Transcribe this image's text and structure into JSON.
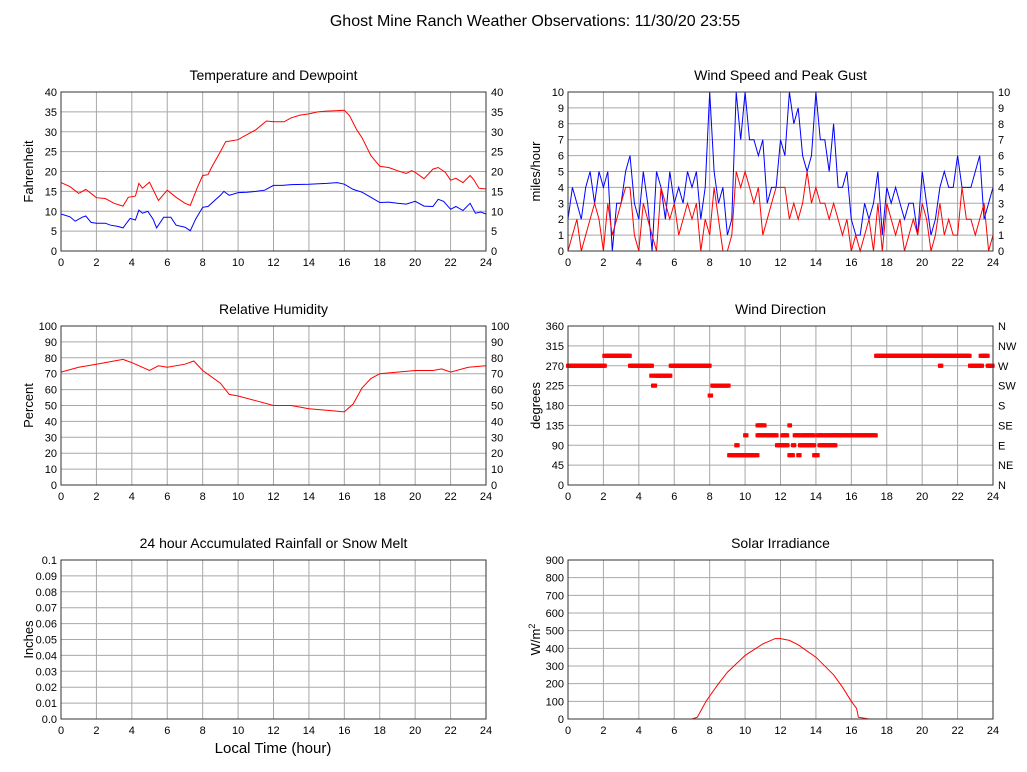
{
  "title": "Ghost Mine Ranch Weather Observations: 11/30/20 23:55",
  "xlabel_common": "Local Time (hour)",
  "colors": {
    "red": "#ff0000",
    "blue": "#0000ff"
  },
  "chart_data": [
    {
      "id": "temp",
      "type": "line",
      "title": "Temperature and Dewpoint",
      "ylabel": "Fahrenheit",
      "xlim": [
        0,
        24
      ],
      "ylim": [
        0,
        40
      ],
      "xticks": [
        0,
        2,
        4,
        6,
        8,
        10,
        12,
        14,
        16,
        18,
        20,
        22,
        24
      ],
      "yticks": [
        0,
        5,
        10,
        15,
        20,
        25,
        30,
        35,
        40
      ],
      "right_ticks": [
        "0",
        "5",
        "10",
        "15",
        "20",
        "25",
        "30",
        "35",
        "40"
      ],
      "series": [
        {
          "name": "Temperature",
          "color": "#ff0000",
          "x": [
            0,
            0.5,
            1,
            1.4,
            2,
            2.5,
            3,
            3.5,
            3.8,
            4.2,
            4.4,
            4.6,
            5,
            5.5,
            6,
            6.5,
            7,
            7.3,
            7.7,
            8,
            8.3,
            8.5,
            9,
            9.3,
            10,
            10.3,
            10.6,
            11,
            11.6,
            12,
            12.6,
            13,
            13.5,
            14,
            14.5,
            15,
            15.5,
            16,
            16.3,
            16.7,
            17,
            17.5,
            18,
            18.5,
            19,
            19.5,
            19.8,
            20,
            20.5,
            21,
            21.3,
            21.7,
            22,
            22.3,
            22.7,
            23.1,
            23.3,
            23.6,
            24
          ],
          "y": [
            17.2,
            16.2,
            14.5,
            15.5,
            13.4,
            13.2,
            12,
            11.3,
            13.5,
            13.8,
            17,
            15.8,
            17.3,
            12.7,
            15.3,
            13.5,
            12,
            11.5,
            16,
            19,
            19.2,
            21,
            25,
            27.5,
            28,
            28.8,
            29.5,
            30.5,
            32.7,
            32.5,
            32.5,
            33.5,
            34.2,
            34.5,
            35,
            35.2,
            35.3,
            35.4,
            34,
            30.5,
            28.5,
            24,
            21.3,
            21,
            20.2,
            19.5,
            20.2,
            19.8,
            18.2,
            20.6,
            21,
            19.8,
            17.8,
            18.3,
            17.2,
            19,
            18,
            15.8,
            15.6
          ]
        },
        {
          "name": "Dewpoint",
          "color": "#0000ff",
          "x": [
            0,
            0.5,
            0.8,
            1.2,
            1.4,
            1.7,
            2,
            2.5,
            2.8,
            3.2,
            3.5,
            3.9,
            4.2,
            4.4,
            4.6,
            4.9,
            5.2,
            5.4,
            5.8,
            6.2,
            6.5,
            7,
            7.3,
            7.6,
            8,
            8.3,
            9,
            9.2,
            9.5,
            10,
            10.5,
            11,
            11.5,
            12,
            12.5,
            13,
            14,
            15,
            15.6,
            16,
            16.5,
            17,
            17.5,
            18,
            18.5,
            19,
            19.5,
            20,
            20.5,
            21,
            21.3,
            21.6,
            22,
            22.3,
            22.7,
            23.1,
            23.4,
            23.7,
            24
          ],
          "y": [
            9.3,
            8.6,
            7.5,
            8.5,
            8.8,
            7.2,
            7,
            7,
            6.5,
            6.2,
            5.8,
            8.2,
            7.8,
            10.3,
            9.5,
            10,
            8,
            5.8,
            8.5,
            8.5,
            6.5,
            6,
            5.1,
            8,
            11,
            11.2,
            14,
            15,
            14,
            14.7,
            14.8,
            15,
            15.3,
            16.5,
            16.5,
            16.7,
            16.8,
            17,
            17.2,
            16.8,
            15.5,
            14.8,
            13.5,
            12.2,
            12.3,
            12,
            11.8,
            12.5,
            11.3,
            11.2,
            13,
            12.5,
            10.5,
            11.2,
            10.2,
            12,
            9.5,
            9.8,
            9.3
          ]
        }
      ]
    },
    {
      "id": "wind",
      "type": "line",
      "title": "Wind Speed and Peak Gust",
      "ylabel": "miles/hour",
      "xlim": [
        0,
        24
      ],
      "ylim": [
        0,
        10
      ],
      "xticks": [
        0,
        2,
        4,
        6,
        8,
        10,
        12,
        14,
        16,
        18,
        20,
        22,
        24
      ],
      "yticks": [
        0,
        1,
        2,
        3,
        4,
        5,
        6,
        7,
        8,
        9,
        10
      ],
      "right_ticks": [
        "0",
        "1",
        "2",
        "3",
        "4",
        "5",
        "6",
        "7",
        "8",
        "9",
        "10"
      ],
      "x_step": 0.25,
      "series": [
        {
          "name": "Peak Gust",
          "color": "#0000ff",
          "y": [
            2,
            4,
            3,
            2,
            4,
            5,
            3,
            5,
            4,
            5,
            0,
            3,
            3,
            5,
            6,
            3,
            2,
            5,
            3,
            0,
            5,
            4,
            2,
            5,
            3,
            4,
            3,
            5,
            4,
            5,
            2,
            4,
            10,
            5,
            3,
            4,
            1,
            2,
            10,
            7,
            10,
            7,
            7,
            6,
            7,
            3,
            4,
            4,
            7,
            6,
            10,
            8,
            9,
            6,
            5,
            6,
            10,
            7,
            7,
            5,
            8,
            4,
            4,
            5,
            2,
            1,
            1,
            3,
            2,
            3,
            5,
            1,
            4,
            3,
            4,
            3,
            2,
            3,
            3,
            1,
            5,
            3,
            1,
            2,
            4,
            5,
            4,
            4,
            6,
            4,
            4,
            4,
            5,
            6,
            2,
            3,
            4
          ]
        },
        {
          "name": "Wind Speed",
          "color": "#ff0000",
          "y": [
            0,
            1,
            2,
            0,
            1,
            2,
            3,
            2,
            0,
            3,
            1,
            2,
            3,
            4,
            4,
            1,
            0,
            3,
            2,
            1,
            0,
            4,
            3,
            2,
            3,
            1,
            2,
            3,
            2,
            3,
            0,
            2,
            1,
            4,
            2,
            0,
            0,
            1,
            5,
            4,
            5,
            4,
            3,
            4,
            1,
            2,
            3,
            4,
            4,
            4,
            2,
            3,
            2,
            3,
            5,
            3,
            4,
            3,
            3,
            2,
            3,
            2,
            1,
            2,
            0,
            1,
            0,
            1,
            2,
            0,
            3,
            0,
            3,
            2,
            1,
            2,
            0,
            1,
            2,
            1,
            3,
            2,
            0,
            1,
            3,
            1,
            2,
            1,
            1,
            4,
            2,
            2,
            1,
            2,
            3,
            0,
            1
          ]
        }
      ]
    },
    {
      "id": "rh",
      "type": "line",
      "title": "Relative Humidity",
      "ylabel": "Percent",
      "xlim": [
        0,
        24
      ],
      "ylim": [
        0,
        100
      ],
      "xticks": [
        0,
        2,
        4,
        6,
        8,
        10,
        12,
        14,
        16,
        18,
        20,
        22,
        24
      ],
      "yticks": [
        0,
        10,
        20,
        30,
        40,
        50,
        60,
        70,
        80,
        90,
        100
      ],
      "right_ticks": [
        "0",
        "10",
        "20",
        "30",
        "40",
        "50",
        "60",
        "70",
        "80",
        "90",
        "100"
      ],
      "series": [
        {
          "name": "Relative Humidity",
          "color": "#ff0000",
          "x": [
            0,
            1,
            2,
            3,
            3.5,
            4,
            5,
            5.5,
            6,
            7,
            7.5,
            8,
            9,
            9.5,
            10,
            11,
            12,
            13,
            14,
            15,
            16,
            16.5,
            17,
            17.5,
            18,
            19,
            20,
            21,
            21.5,
            22,
            23,
            24
          ],
          "y": [
            71,
            74,
            76,
            78,
            79,
            77,
            72,
            75,
            74,
            76,
            78,
            72,
            64,
            57,
            56,
            53,
            50,
            50,
            48,
            47,
            46,
            51,
            61,
            67,
            70,
            71,
            72,
            72,
            73,
            71,
            74,
            75
          ]
        }
      ]
    },
    {
      "id": "dir",
      "type": "scatter",
      "title": "Wind Direction",
      "ylabel": "degrees",
      "xlim": [
        0,
        24
      ],
      "ylim": [
        0,
        360
      ],
      "xticks": [
        0,
        2,
        4,
        6,
        8,
        10,
        12,
        14,
        16,
        18,
        20,
        22,
        24
      ],
      "yticks": [
        0,
        45,
        90,
        135,
        180,
        225,
        270,
        315,
        360
      ],
      "right_ticks": [
        "N",
        "NE",
        "E",
        "SE",
        "S",
        "SW",
        "W",
        "NW",
        "N"
      ],
      "series": [
        {
          "name": "Wind Direction",
          "color": "#ff0000",
          "segments": [
            [
              0,
              2.1,
              270
            ],
            [
              2.05,
              3.5,
              292.5
            ],
            [
              3.5,
              4.75,
              270
            ],
            [
              4.7,
              4.75,
              247.5
            ],
            [
              4.8,
              4.95,
              225
            ],
            [
              4.9,
              5.8,
              247.5
            ],
            [
              5.8,
              8,
              270
            ],
            [
              8,
              8.1,
              202.5
            ],
            [
              8.15,
              9.1,
              225
            ],
            [
              9.1,
              10.7,
              67.5
            ],
            [
              9.5,
              9.6,
              90
            ],
            [
              10,
              10.1,
              112.5
            ],
            [
              10.7,
              11.1,
              135
            ],
            [
              10.7,
              11.8,
              112.5
            ],
            [
              11.8,
              12.4,
              90
            ],
            [
              12.1,
              12.4,
              112.5
            ],
            [
              12.5,
              12.55,
              135
            ],
            [
              12.5,
              12.7,
              67.5
            ],
            [
              12.7,
              12.8,
              90
            ],
            [
              12.8,
              13.1,
              112.5
            ],
            [
              13,
              13.1,
              67.5
            ],
            [
              13.1,
              13.9,
              90
            ],
            [
              13.2,
              13.9,
              112.5
            ],
            [
              13.9,
              14.1,
              67.5
            ],
            [
              14.1,
              14.4,
              112.5
            ],
            [
              14.2,
              14.8,
              90
            ],
            [
              14.5,
              15.1,
              112.5
            ],
            [
              14.9,
              15.1,
              90
            ],
            [
              15.1,
              17.4,
              112.5
            ],
            [
              17.4,
              22.7,
              292.5
            ],
            [
              21,
              21.1,
              270
            ],
            [
              22.7,
              23.4,
              270
            ],
            [
              23.3,
              23.7,
              292.5
            ],
            [
              23.7,
              24,
              270
            ]
          ]
        }
      ]
    },
    {
      "id": "rain",
      "type": "line",
      "title": "24 hour Accumulated Rainfall or Snow Melt",
      "ylabel": "Inches",
      "xlim": [
        0,
        24
      ],
      "ylim": [
        0,
        0.1
      ],
      "xticks": [
        0,
        2,
        4,
        6,
        8,
        10,
        12,
        14,
        16,
        18,
        20,
        22,
        24
      ],
      "yticks": [
        0,
        0.01,
        0.02,
        0.03,
        0.04,
        0.05,
        0.06,
        0.07,
        0.08,
        0.09,
        0.1
      ],
      "ytick_labels": [
        "0.0",
        "0.01",
        "0.02",
        "0.03",
        "0.04",
        "0.05",
        "0.06",
        "0.07",
        "0.08",
        "0.09",
        "0.1"
      ],
      "series": [
        {
          "name": "Rainfall",
          "color": "#ff0000",
          "x": [
            0,
            24
          ],
          "y": [
            0,
            0
          ]
        }
      ]
    },
    {
      "id": "solar",
      "type": "line",
      "title": "Solar Irradiance",
      "ylabel": "W/m²",
      "xlim": [
        0,
        24
      ],
      "ylim": [
        0,
        900
      ],
      "xticks": [
        0,
        2,
        4,
        6,
        8,
        10,
        12,
        14,
        16,
        18,
        20,
        22,
        24
      ],
      "yticks": [
        0,
        100,
        200,
        300,
        400,
        500,
        600,
        700,
        800,
        900
      ],
      "series": [
        {
          "name": "Solar Irradiance",
          "color": "#ff0000",
          "x": [
            0,
            7,
            7.3,
            7.8,
            8,
            8.5,
            9,
            10,
            11,
            11.7,
            12,
            12.5,
            13,
            14,
            15,
            15.5,
            16,
            16.3,
            16.4,
            17,
            24
          ],
          "y": [
            0,
            0,
            10,
            100,
            130,
            200,
            265,
            360,
            425,
            455,
            455,
            445,
            420,
            350,
            250,
            180,
            100,
            60,
            10,
            0,
            0
          ]
        }
      ]
    }
  ]
}
